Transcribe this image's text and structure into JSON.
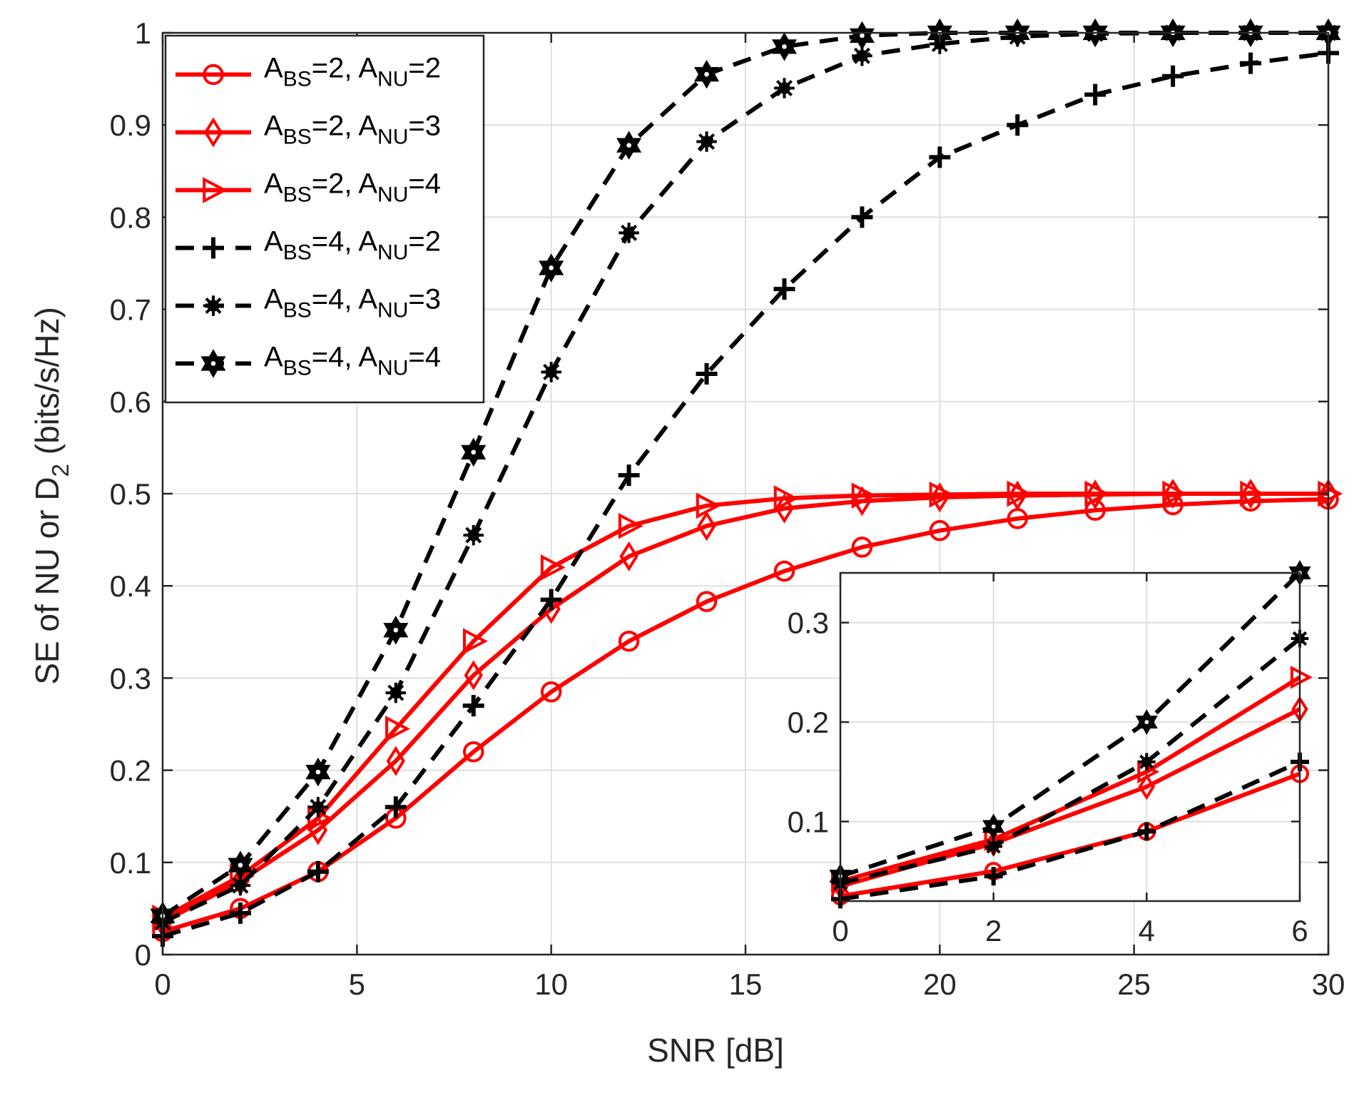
{
  "chart_data": {
    "type": "line",
    "xlabel": "SNR [dB]",
    "ylabel": {
      "main": "SE of NU or D",
      "sub": "2",
      "suffix": " (bits/s/Hz)"
    },
    "xlim": [
      0,
      30
    ],
    "ylim": [
      0,
      1
    ],
    "xticks": [
      "0",
      "5",
      "10",
      "15",
      "20",
      "25",
      "30"
    ],
    "yticks": [
      "0",
      "0.1",
      "0.2",
      "0.3",
      "0.4",
      "0.5",
      "0.6",
      "0.7",
      "0.8",
      "0.9",
      "1"
    ],
    "grid": true,
    "legend_position": "top-left",
    "x": [
      0,
      2,
      4,
      6,
      8,
      10,
      12,
      14,
      16,
      18,
      20,
      22,
      24,
      26,
      28,
      30
    ],
    "series": [
      {
        "name": "A_BS=2, A_NU=2",
        "label_parts": [
          "A",
          "BS",
          "=2, A",
          "NU",
          "=2"
        ],
        "color": "#ff0000",
        "dash": "solid",
        "marker": "circle",
        "values": [
          0.025,
          0.05,
          0.09,
          0.148,
          0.22,
          0.285,
          0.34,
          0.383,
          0.416,
          0.442,
          0.46,
          0.473,
          0.482,
          0.488,
          0.492,
          0.494
        ]
      },
      {
        "name": "A_BS=2, A_NU=3",
        "label_parts": [
          "A",
          "BS",
          "=2, A",
          "NU",
          "=3"
        ],
        "color": "#ff0000",
        "dash": "solid",
        "marker": "diamond",
        "values": [
          0.035,
          0.08,
          0.135,
          0.21,
          0.303,
          0.375,
          0.432,
          0.465,
          0.484,
          0.492,
          0.496,
          0.498,
          0.499,
          0.5,
          0.5,
          0.5
        ]
      },
      {
        "name": "A_BS=2, A_NU=4",
        "label_parts": [
          "A",
          "BS",
          "=2, A",
          "NU",
          "=4"
        ],
        "color": "#ff0000",
        "dash": "solid",
        "marker": "triangle-right",
        "values": [
          0.04,
          0.085,
          0.148,
          0.245,
          0.34,
          0.42,
          0.465,
          0.487,
          0.495,
          0.498,
          0.499,
          0.5,
          0.5,
          0.5,
          0.5,
          0.5
        ]
      },
      {
        "name": "A_BS=4, A_NU=2",
        "label_parts": [
          "A",
          "BS",
          "=4, A",
          "NU",
          "=2"
        ],
        "color": "#000000",
        "dash": "dashed",
        "marker": "plus",
        "values": [
          0.02,
          0.045,
          0.09,
          0.16,
          0.27,
          0.385,
          0.52,
          0.63,
          0.722,
          0.8,
          0.865,
          0.9,
          0.933,
          0.953,
          0.967,
          0.978
        ]
      },
      {
        "name": "A_BS=4, A_NU=3",
        "label_parts": [
          "A",
          "BS",
          "=4, A",
          "NU",
          "=3"
        ],
        "color": "#000000",
        "dash": "dashed",
        "marker": "asterisk-dot",
        "values": [
          0.035,
          0.075,
          0.16,
          0.284,
          0.455,
          0.632,
          0.783,
          0.882,
          0.94,
          0.975,
          0.988,
          0.996,
          0.999,
          1.0,
          1.0,
          1.0
        ]
      },
      {
        "name": "A_BS=4, A_NU=4",
        "label_parts": [
          "A",
          "BS",
          "=4, A",
          "NU",
          "=4"
        ],
        "color": "#000000",
        "dash": "dashed",
        "marker": "hexagram",
        "values": [
          0.042,
          0.097,
          0.198,
          0.352,
          0.545,
          0.745,
          0.878,
          0.955,
          0.985,
          0.997,
          1.0,
          1.0,
          1.0,
          1.0,
          1.0,
          1.0
        ]
      }
    ],
    "inset": {
      "xlim": [
        0,
        6
      ],
      "ylim": [
        0.02,
        0.35
      ],
      "xticks": [
        "0",
        "2",
        "4",
        "6"
      ],
      "yticks": [
        "0.1",
        "0.2",
        "0.3"
      ],
      "x": [
        0,
        2,
        4,
        6
      ],
      "series": [
        {
          "values": [
            0.025,
            0.05,
            0.09,
            0.148
          ]
        },
        {
          "values": [
            0.035,
            0.078,
            0.135,
            0.213
          ]
        },
        {
          "values": [
            0.04,
            0.082,
            0.15,
            0.245
          ]
        },
        {
          "values": [
            0.022,
            0.045,
            0.09,
            0.16
          ]
        },
        {
          "values": [
            0.038,
            0.075,
            0.16,
            0.284
          ]
        },
        {
          "values": [
            0.045,
            0.095,
            0.2,
            0.35
          ]
        }
      ]
    }
  }
}
